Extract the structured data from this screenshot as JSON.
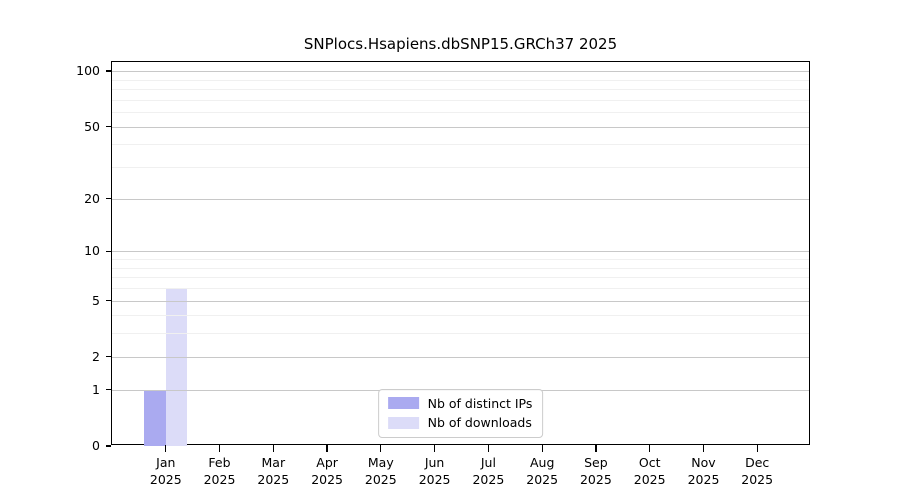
{
  "chart_data": {
    "type": "bar",
    "title": "SNPlocs.Hsapiens.dbSNP15.GRCh37 2025",
    "categories": [
      "Jan 2025",
      "Feb 2025",
      "Mar 2025",
      "Apr 2025",
      "May 2025",
      "Jun 2025",
      "Jul 2025",
      "Aug 2025",
      "Sep 2025",
      "Oct 2025",
      "Nov 2025",
      "Dec 2025"
    ],
    "series": [
      {
        "name": "Nb of distinct IPs",
        "color": "#aaaaf0",
        "values": [
          1,
          0,
          0,
          0,
          0,
          0,
          0,
          0,
          0,
          0,
          0,
          0
        ]
      },
      {
        "name": "Nb of downloads",
        "color": "#dcdcf8",
        "values": [
          6,
          0,
          0,
          0,
          0,
          0,
          0,
          0,
          0,
          0,
          0,
          0
        ]
      }
    ],
    "yscale": "log2(value+1)",
    "ylim": [
      0,
      112
    ],
    "y_ticks": [
      0,
      1,
      2,
      5,
      10,
      20,
      50,
      100
    ],
    "y_minor_gridlines": [
      3,
      4,
      6,
      7,
      8,
      9,
      30,
      40,
      60,
      70,
      80,
      90
    ],
    "grid": true,
    "legend_position": "lower center inside plot"
  },
  "colors": {
    "axis": "#000000",
    "major_grid": "#c8c8c8",
    "minor_grid": "#f0f0f0",
    "background": "#ffffff"
  }
}
